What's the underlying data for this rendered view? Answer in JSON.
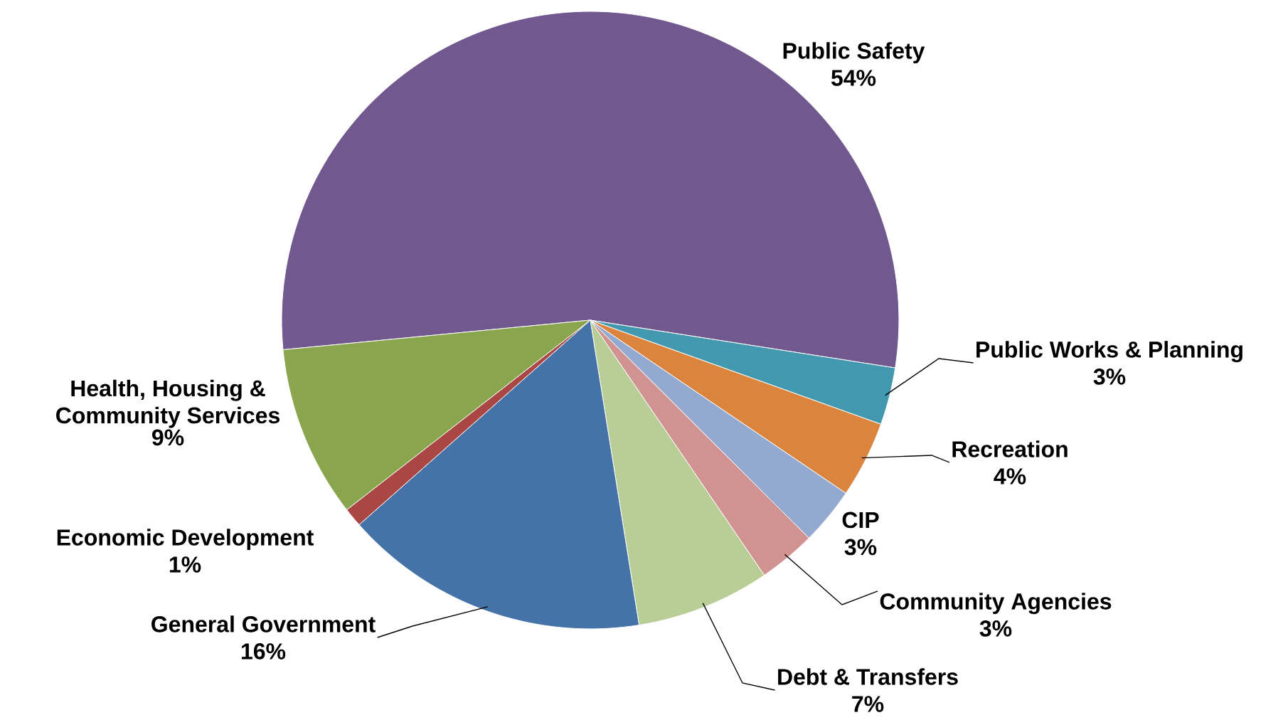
{
  "chart_data": {
    "type": "pie",
    "categories": [
      "Public Safety",
      "Public Works & Planning",
      "Recreation",
      "CIP",
      "Community Agencies",
      "Debt & Transfers",
      "General Government",
      "Economic Development",
      "Health, Housing & Community Services"
    ],
    "values": [
      54,
      3,
      4,
      3,
      3,
      7,
      16,
      1,
      9
    ],
    "value_labels": [
      "54%",
      "3%",
      "4%",
      "3%",
      "3%",
      "7%",
      "16%",
      "1%",
      "9%"
    ],
    "colors": [
      "#71588f",
      "#4198af",
      "#db843d",
      "#93a9cf",
      "#d19392",
      "#b9cd96",
      "#4572a7",
      "#aa4643",
      "#89a54e"
    ]
  }
}
